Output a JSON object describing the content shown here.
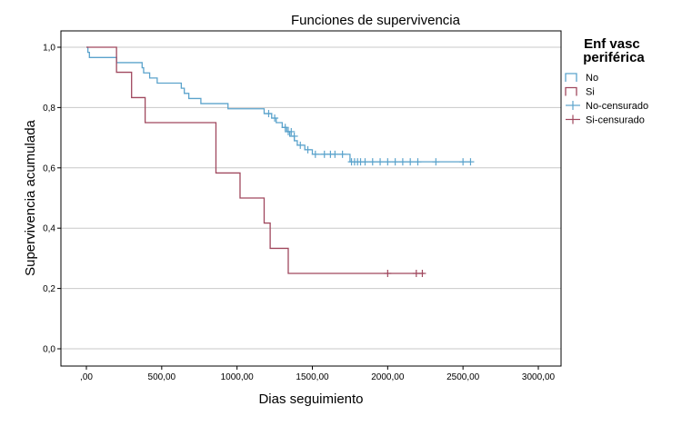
{
  "chart_data": {
    "type": "line",
    "subtype": "kaplan-meier-step",
    "title": "Funciones de supervivencia",
    "xlabel": "Dias seguimiento",
    "ylabel": "Supervivencia acumulada",
    "xlim": [
      0,
      3000
    ],
    "ylim": [
      0,
      1
    ],
    "x_ticks": [
      0,
      500,
      1000,
      1500,
      2000,
      2500,
      3000
    ],
    "x_tick_labels": [
      ",00",
      "500,00",
      "1000,00",
      "1500,00",
      "2000,00",
      "2500,00",
      "3000,00"
    ],
    "y_ticks": [
      0,
      0.2,
      0.4,
      0.6,
      0.8,
      1.0
    ],
    "y_tick_labels": [
      "0,0",
      "0,2",
      "0,4",
      "0,6",
      "0,8",
      "1,0"
    ],
    "grid": "horizontal",
    "legend": {
      "title": "Enf vasc periférica",
      "title_lines": [
        "Enf vasc",
        "periférica"
      ],
      "placement": "right",
      "entries": [
        "No",
        "Si",
        "No-censurado",
        "Si-censurado"
      ]
    },
    "series": [
      {
        "name": "No",
        "color": "#5ba3cc",
        "steps": [
          [
            0,
            1.0
          ],
          [
            10,
            0.983
          ],
          [
            20,
            0.966
          ],
          [
            200,
            0.949
          ],
          [
            370,
            0.932
          ],
          [
            380,
            0.915
          ],
          [
            420,
            0.898
          ],
          [
            470,
            0.881
          ],
          [
            630,
            0.864
          ],
          [
            650,
            0.847
          ],
          [
            680,
            0.83
          ],
          [
            760,
            0.813
          ],
          [
            940,
            0.796
          ],
          [
            1000,
            0.796
          ],
          [
            1180,
            0.78
          ],
          [
            1230,
            0.765
          ],
          [
            1260,
            0.75
          ],
          [
            1300,
            0.734
          ],
          [
            1330,
            0.72
          ],
          [
            1350,
            0.705
          ],
          [
            1380,
            0.69
          ],
          [
            1400,
            0.675
          ],
          [
            1450,
            0.66
          ],
          [
            1500,
            0.645
          ],
          [
            1750,
            0.62
          ],
          [
            2550,
            0.62
          ]
        ],
        "censored": [
          [
            1210,
            0.78
          ],
          [
            1250,
            0.765
          ],
          [
            1320,
            0.734
          ],
          [
            1340,
            0.72
          ],
          [
            1360,
            0.72
          ],
          [
            1380,
            0.705
          ],
          [
            1420,
            0.675
          ],
          [
            1470,
            0.66
          ],
          [
            1520,
            0.645
          ],
          [
            1580,
            0.645
          ],
          [
            1620,
            0.645
          ],
          [
            1650,
            0.645
          ],
          [
            1700,
            0.645
          ],
          [
            1760,
            0.62
          ],
          [
            1780,
            0.62
          ],
          [
            1800,
            0.62
          ],
          [
            1820,
            0.62
          ],
          [
            1850,
            0.62
          ],
          [
            1900,
            0.62
          ],
          [
            1950,
            0.62
          ],
          [
            2000,
            0.62
          ],
          [
            2050,
            0.62
          ],
          [
            2100,
            0.62
          ],
          [
            2150,
            0.62
          ],
          [
            2200,
            0.62
          ],
          [
            2320,
            0.62
          ],
          [
            2500,
            0.62
          ],
          [
            2550,
            0.62
          ]
        ]
      },
      {
        "name": "Si",
        "color": "#a0485e",
        "steps": [
          [
            0,
            1.0
          ],
          [
            200,
            0.917
          ],
          [
            300,
            0.833
          ],
          [
            390,
            0.75
          ],
          [
            860,
            0.583
          ],
          [
            1020,
            0.5
          ],
          [
            1180,
            0.417
          ],
          [
            1220,
            0.333
          ],
          [
            1340,
            0.25
          ],
          [
            2240,
            0.25
          ]
        ],
        "censored": [
          [
            2000,
            0.25
          ],
          [
            2190,
            0.25
          ],
          [
            2230,
            0.25
          ]
        ]
      }
    ]
  }
}
